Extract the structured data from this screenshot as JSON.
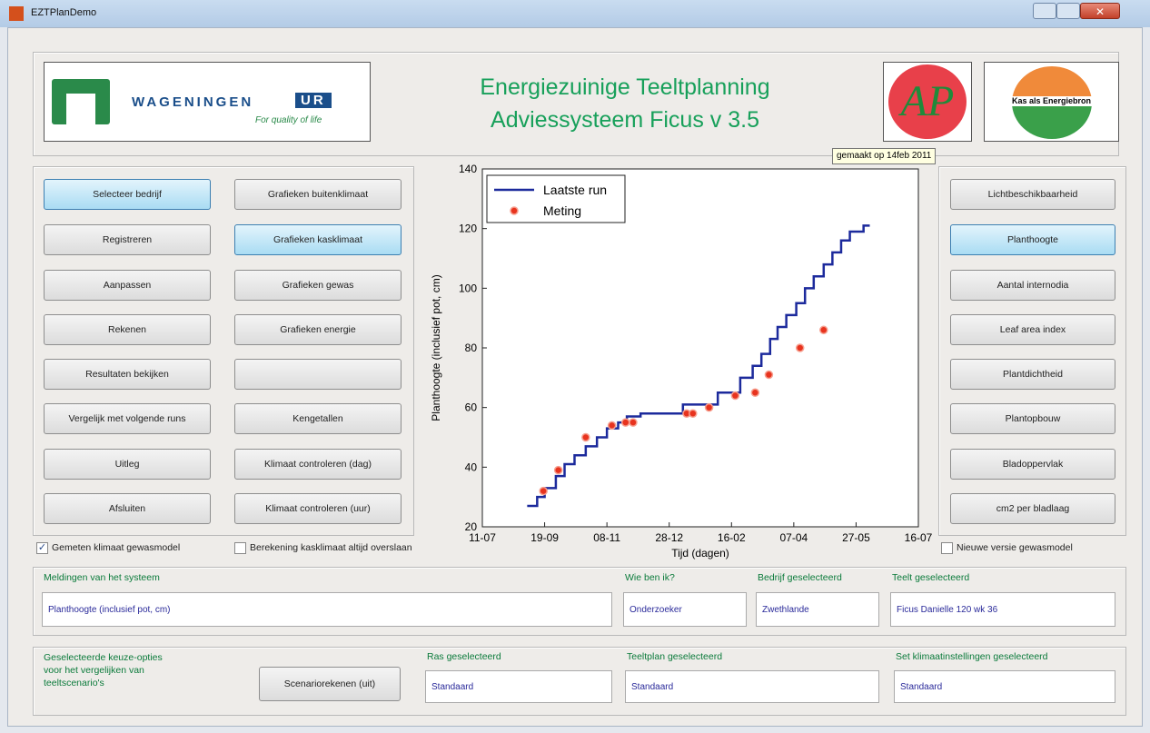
{
  "window": {
    "title": "EZTPlanDemo"
  },
  "header": {
    "title_lines": [
      "Energiezuinige Teeltplanning",
      "Adviessysteem Ficus v 3.5"
    ],
    "logo_wageningen": {
      "name": "WAGENINGEN",
      "suffix": "UR",
      "tagline": "For quality of life"
    },
    "logo_ap": "AP",
    "logo_kas": "Kas als Energiebron",
    "tooltip": "gemaakt op 14feb 2011"
  },
  "left_buttons": [
    [
      {
        "label": "Selecteer bedrijf",
        "active": true
      },
      {
        "label": "Registreren"
      },
      {
        "label": "Aanpassen"
      },
      {
        "label": "Rekenen"
      },
      {
        "label": "Resultaten bekijken"
      },
      {
        "label": "Vergelijk met volgende runs"
      },
      {
        "label": "Uitleg"
      },
      {
        "label": "Afsluiten"
      }
    ],
    [
      {
        "label": "Grafieken buitenklimaat"
      },
      {
        "label": "Grafieken kasklimaat",
        "active": true
      },
      {
        "label": "Grafieken gewas"
      },
      {
        "label": "Grafieken energie"
      },
      null,
      {
        "label": "Kengetallen"
      },
      {
        "label": "Klimaat controleren (dag)"
      },
      {
        "label": "Klimaat controleren (uur)"
      }
    ]
  ],
  "right_buttons": [
    {
      "label": "Lichtbeschikbaarheid"
    },
    {
      "label": "Planthoogte",
      "active": true
    },
    {
      "label": "Aantal internodia"
    },
    {
      "label": "Leaf area index"
    },
    {
      "label": "Plantdichtheid"
    },
    {
      "label": "Plantopbouw"
    },
    {
      "label": "Bladoppervlak"
    },
    {
      "label": "cm2 per bladlaag"
    }
  ],
  "checkboxes": [
    {
      "label": "Gemeten klimaat gewasmodel",
      "checked": true
    },
    {
      "label": "Berekening kasklimaat altijd overslaan",
      "checked": false
    },
    {
      "label": "Nieuwe versie gewasmodel",
      "checked": false
    }
  ],
  "status": [
    {
      "label": "Meldingen van het systeem",
      "value": "Planthoogte (inclusief pot, cm)"
    },
    {
      "label": "Wie ben ik?",
      "value": "Onderzoeker"
    },
    {
      "label": "Bedrijf geselecteerd",
      "value": "Zwethlande"
    },
    {
      "label": "Teelt geselecteerd",
      "value": "Ficus Danielle 120 wk 36"
    }
  ],
  "scenario": {
    "text_lines": [
      "Geselecteerde keuze-opties",
      "voor het vergelijken van",
      "teeltscenario's"
    ],
    "button": "Scenariorekenen (uit)",
    "fields": [
      {
        "label": "Ras geselecteerd",
        "value": "Standaard"
      },
      {
        "label": "Teeltplan geselecteerd",
        "value": "Standaard"
      },
      {
        "label": "Set klimaatinstellingen geselecteerd",
        "value": "Standaard"
      }
    ]
  },
  "chart_data": {
    "type": "line",
    "xlabel": "Tijd (dagen)",
    "ylabel": "Planthoogte (inclusief pot, cm)",
    "xlim": [
      0,
      350
    ],
    "xticks": [
      {
        "value": 0,
        "label": "11-07"
      },
      {
        "value": 50,
        "label": "19-09"
      },
      {
        "value": 100,
        "label": "08-11"
      },
      {
        "value": 150,
        "label": "28-12"
      },
      {
        "value": 200,
        "label": "16-02"
      },
      {
        "value": 250,
        "label": "07-04"
      },
      {
        "value": 300,
        "label": "27-05"
      },
      {
        "value": 350,
        "label": "16-07"
      }
    ],
    "ylim": [
      20,
      140
    ],
    "yticks": [
      20,
      40,
      60,
      80,
      100,
      120,
      140
    ],
    "grid": false,
    "legend": "upper left",
    "series": [
      {
        "name": "Laatste run",
        "type": "line",
        "color": "#1c2a9c",
        "x": [
          36,
          44,
          44,
          50,
          50,
          59,
          59,
          66,
          66,
          74,
          74,
          83,
          83,
          92,
          92,
          100,
          100,
          109,
          109,
          116,
          116,
          127,
          127,
          161,
          161,
          189,
          189,
          207,
          207,
          217,
          217,
          224,
          224,
          231,
          231,
          237,
          237,
          244,
          244,
          252,
          252,
          259,
          259,
          266,
          266,
          274,
          274,
          281,
          281,
          288,
          288,
          295,
          295,
          306,
          306,
          311
        ],
        "values": [
          27,
          27,
          30,
          30,
          33,
          33,
          37,
          37,
          41,
          41,
          44,
          44,
          47,
          47,
          50,
          50,
          53,
          53,
          55,
          55,
          57,
          57,
          58,
          58,
          61,
          61,
          65,
          65,
          70,
          70,
          74,
          74,
          78,
          78,
          83,
          83,
          87,
          87,
          91,
          91,
          95,
          95,
          100,
          100,
          104,
          104,
          108,
          108,
          112,
          112,
          116,
          116,
          119,
          119,
          121,
          121
        ]
      },
      {
        "name": "Meting",
        "type": "scatter",
        "color": "#e8331e",
        "x": [
          49,
          61,
          83,
          104,
          115,
          121,
          164,
          169,
          182,
          203,
          219,
          230,
          255,
          274
        ],
        "values": [
          32,
          39,
          50,
          54,
          55,
          55,
          58,
          58,
          60,
          64,
          65,
          71,
          80,
          86
        ]
      }
    ]
  }
}
